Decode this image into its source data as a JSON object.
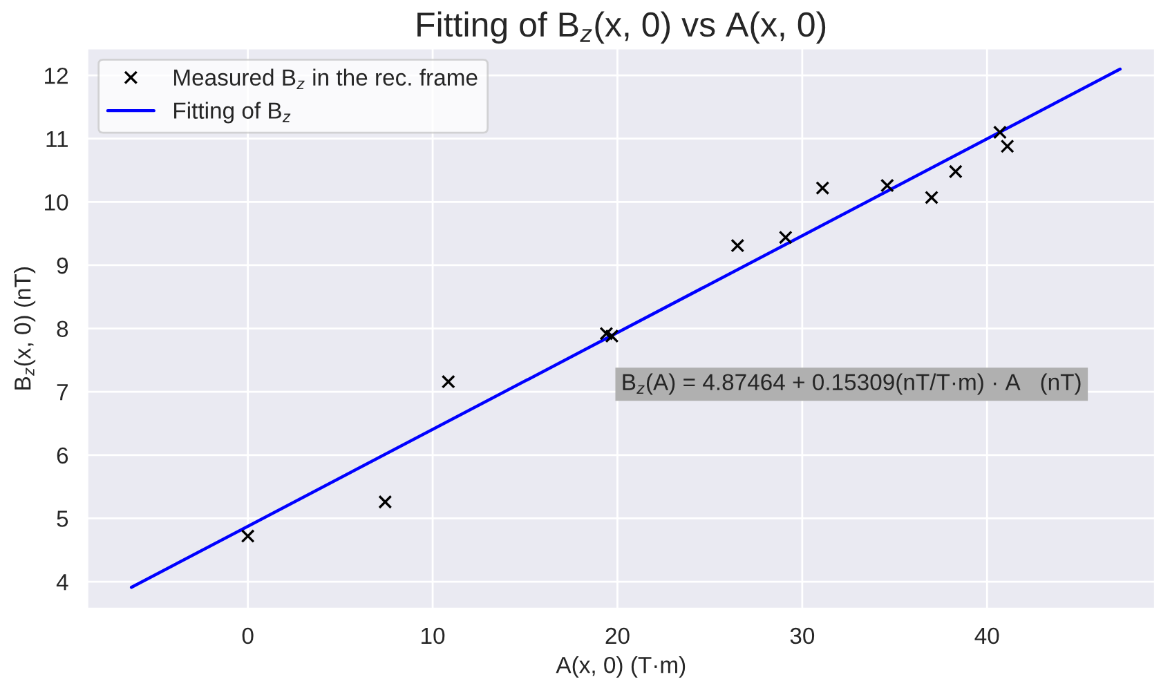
{
  "chart_data": {
    "type": "scatter",
    "title": "Fitting of B$_{z}$(x, 0) vs A(x, 0)",
    "xlabel": "A(x, 0) (T·m)",
    "ylabel": "B$_{z}$(x, 0) (nT)",
    "annotations": [
      "B$_{z}$(A) = 4.87464 + 0.15309(nT/T·m) · A   (nT)"
    ],
    "series": [
      {
        "name": "Measured B$_{z}$ in the rec. frame",
        "color": "#000000",
        "marker": "cross",
        "x": [
          0,
          7.43,
          10.85,
          19.4,
          19.7,
          26.5,
          29.1,
          31.1,
          34.6,
          37.0,
          38.3,
          40.7,
          41.1
        ],
        "values": [
          4.72,
          5.26,
          7.16,
          7.92,
          7.88,
          9.31,
          9.44,
          10.22,
          10.26,
          10.07,
          10.48,
          11.1,
          10.88
        ]
      },
      {
        "name": "Fitting of B$_{z}$",
        "type": "line",
        "color": "#0000ff",
        "marker": "none",
        "line_style": "solid",
        "x": [
          -6.3,
          47.2
        ],
        "values": [
          3.91,
          12.1
        ]
      }
    ],
    "xlim": [
      -8.7,
      49.1
    ],
    "ylim": [
      3.57,
      12.43
    ],
    "xticks": [
      0,
      10,
      20,
      30,
      40
    ],
    "yticks": [
      4,
      5,
      6,
      7,
      8,
      9,
      10,
      11,
      12
    ],
    "grid": true,
    "legend": "top left"
  }
}
